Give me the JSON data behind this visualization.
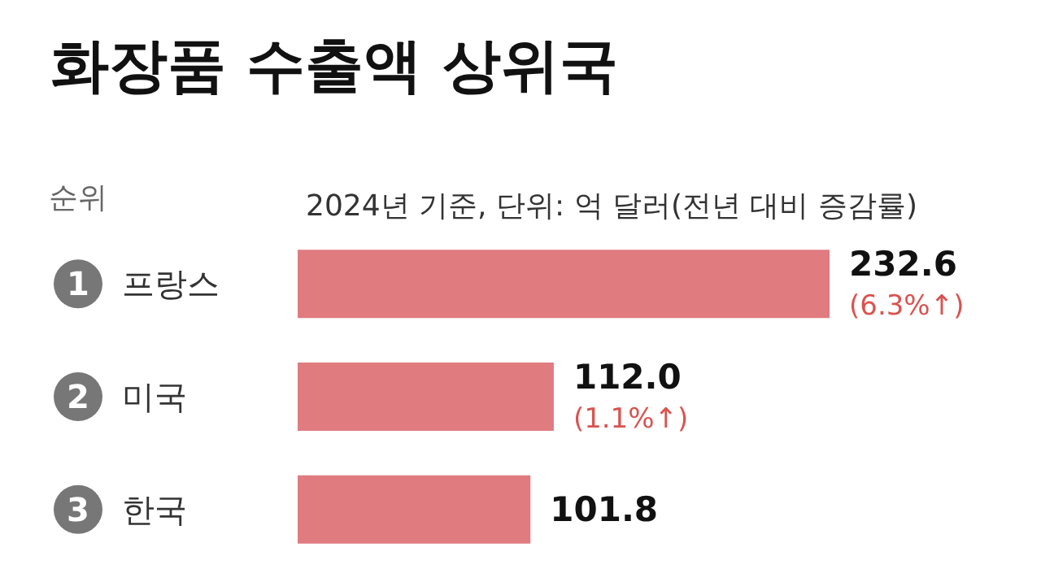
{
  "chart_data": {
    "type": "bar",
    "orientation": "horizontal",
    "title": "화장품 수출액 상위국",
    "subtitle": "2024년 기준, 단위: 억 달러(전년 대비 증감률)",
    "categories": [
      "프랑스",
      "미국",
      "한국"
    ],
    "values": [
      232.6,
      112.0,
      101.8
    ],
    "color": "#e07b80",
    "value_labels": [
      "232.6\n(6.3%↑)",
      "112.0\n(1.1%↑)",
      "101.8"
    ],
    "annotations": [
      "순위",
      "1",
      "2",
      "3"
    ]
  }
}
